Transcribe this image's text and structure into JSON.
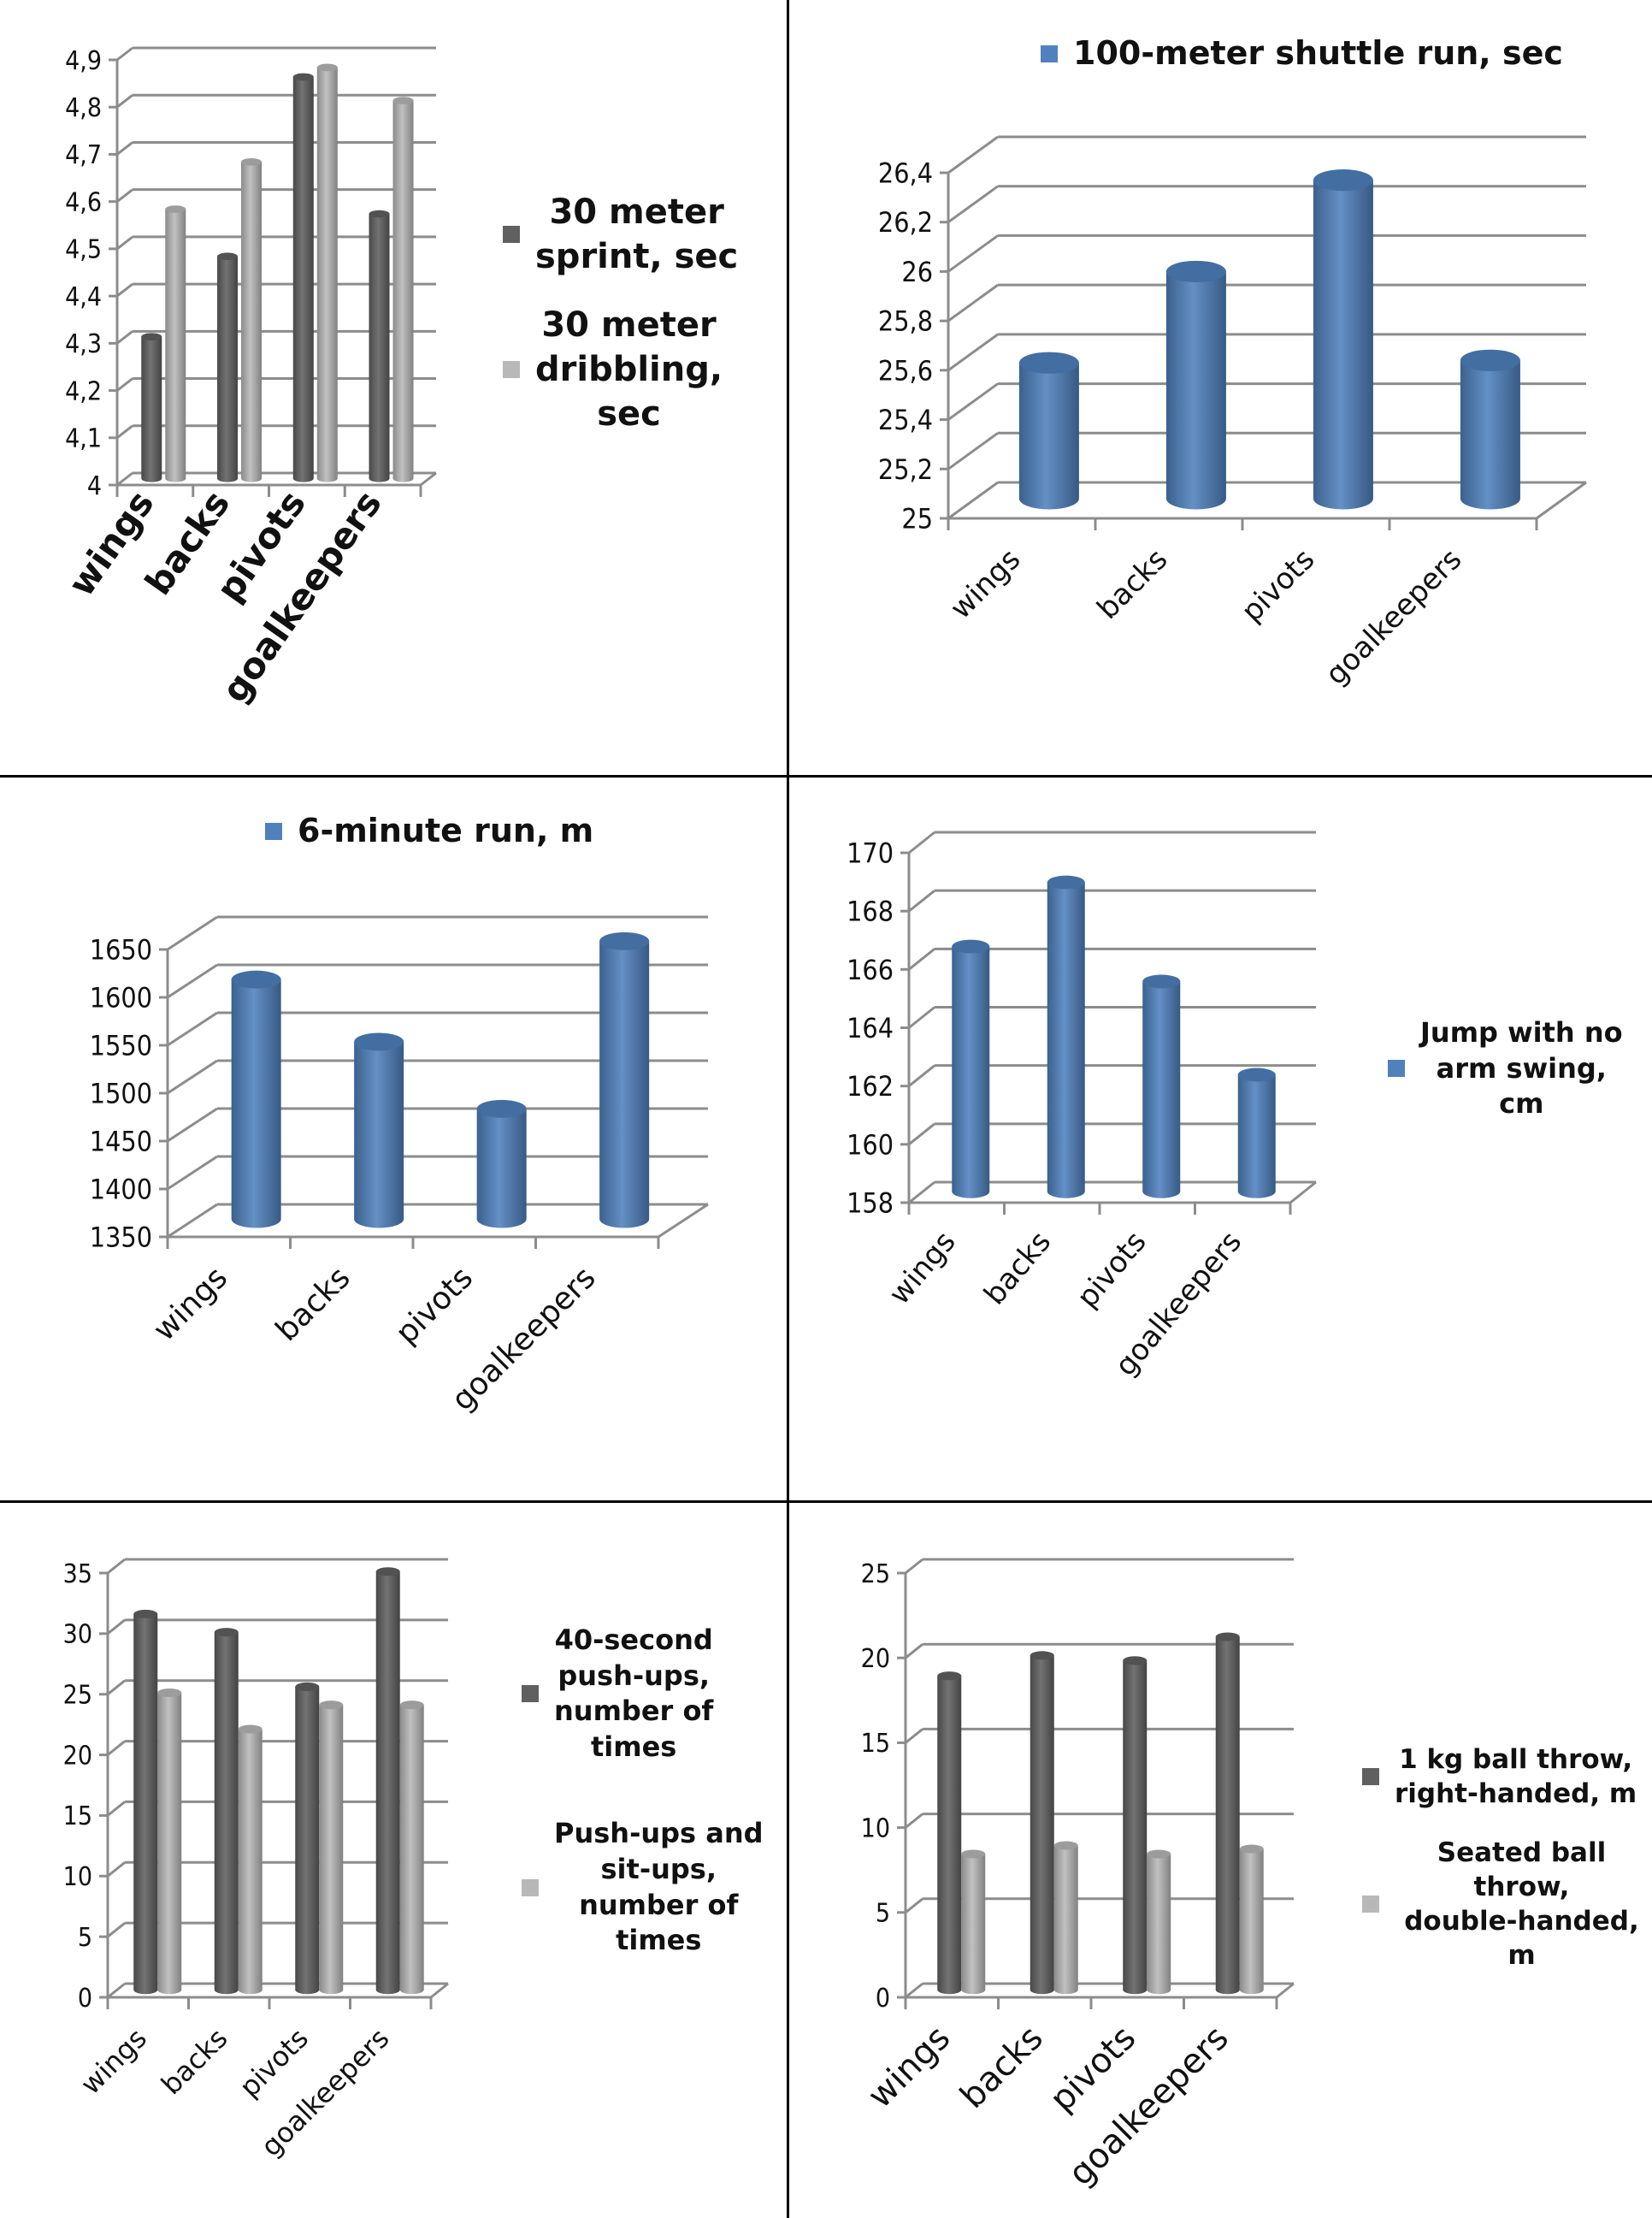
{
  "chart_data": [
    {
      "id": "sprint-dribbling",
      "type": "bar",
      "style": "3d-cylinder-clustered",
      "title": "",
      "categories": [
        "wings",
        "backs",
        "pivots",
        "goalkeepers"
      ],
      "series": [
        {
          "name": "30 meter sprint, sec",
          "color": "#606060",
          "values": [
            4.3,
            4.47,
            4.85,
            4.56
          ]
        },
        {
          "name": "30 meter dribbling, sec",
          "color": "#b8b8b8",
          "values": [
            4.57,
            4.67,
            4.87,
            4.8
          ]
        }
      ],
      "yticks": [
        "4",
        "4,1",
        "4,2",
        "4,3",
        "4,4",
        "4,5",
        "4,6",
        "4,7",
        "4,8",
        "4,9"
      ],
      "ylim": [
        4,
        4.9
      ],
      "xlabel": "",
      "ylabel": "",
      "grid": true,
      "legend": "right"
    },
    {
      "id": "shuttle-run",
      "type": "bar",
      "style": "3d-cylinder",
      "title": "",
      "categories": [
        "wings",
        "backs",
        "pivots",
        "goalkeepers"
      ],
      "series": [
        {
          "name": "100-meter shuttle run, sec",
          "color": "#4f81bd",
          "values": [
            25.55,
            25.92,
            26.29,
            25.56
          ]
        }
      ],
      "yticks": [
        "25",
        "25,2",
        "25,4",
        "25,6",
        "25,8",
        "26",
        "26,2",
        "26,4"
      ],
      "ylim": [
        25,
        26.4
      ],
      "xlabel": "",
      "ylabel": "",
      "grid": true,
      "legend": "top"
    },
    {
      "id": "six-minute-run",
      "type": "bar",
      "style": "3d-cylinder",
      "title": "",
      "categories": [
        "wings",
        "backs",
        "pivots",
        "goalkeepers"
      ],
      "series": [
        {
          "name": "6-minute run, m",
          "color": "#4f81bd",
          "values": [
            1600,
            1535,
            1465,
            1640
          ]
        }
      ],
      "yticks": [
        "1350",
        "1400",
        "1450",
        "1500",
        "1550",
        "1600",
        "1650"
      ],
      "ylim": [
        1350,
        1650
      ],
      "xlabel": "",
      "ylabel": "",
      "grid": true,
      "legend": "top"
    },
    {
      "id": "jump",
      "type": "bar",
      "style": "3d-cylinder",
      "title": "",
      "categories": [
        "wings",
        "backs",
        "pivots",
        "goalkeepers"
      ],
      "series": [
        {
          "name": "Jump with no arm swing, cm",
          "color": "#4f81bd",
          "values": [
            166.4,
            168.6,
            165.2,
            162.0
          ]
        }
      ],
      "yticks": [
        "158",
        "160",
        "162",
        "164",
        "166",
        "168",
        "170"
      ],
      "ylim": [
        158,
        170
      ],
      "xlabel": "",
      "ylabel": "",
      "grid": true,
      "legend": "right"
    },
    {
      "id": "push-ups",
      "type": "bar",
      "style": "3d-cylinder-clustered",
      "title": "",
      "categories": [
        "wings",
        "backs",
        "pivots",
        "goalkeepers"
      ],
      "series": [
        {
          "name": "40-second push-ups, number of times",
          "color": "#606060",
          "values": [
            31,
            29.5,
            25,
            34.5
          ]
        },
        {
          "name": "Push-ups and sit-ups, number of times",
          "color": "#b8b8b8",
          "values": [
            24.5,
            21.5,
            23.5,
            23.5
          ]
        }
      ],
      "yticks": [
        "0",
        "5",
        "10",
        "15",
        "20",
        "25",
        "30",
        "35"
      ],
      "ylim": [
        0,
        35
      ],
      "xlabel": "",
      "ylabel": "",
      "grid": true,
      "legend": "right"
    },
    {
      "id": "ball-throw",
      "type": "bar",
      "style": "3d-cylinder-clustered",
      "title": "",
      "categories": [
        "wings",
        "backs",
        "pivots",
        "goalkeepers"
      ],
      "series": [
        {
          "name": "1 kg ball throw, right-handed, m",
          "color": "#606060",
          "values": [
            18.5,
            19.7,
            19.4,
            20.8
          ]
        },
        {
          "name": "Seated ball throw, double-handed, m",
          "color": "#b8b8b8",
          "values": [
            8.0,
            8.5,
            8.0,
            8.3
          ]
        }
      ],
      "yticks": [
        "0",
        "5",
        "10",
        "15",
        "20",
        "25"
      ],
      "ylim": [
        0,
        25
      ],
      "xlabel": "",
      "ylabel": "",
      "grid": true,
      "legend": "right"
    }
  ],
  "legends": [
    {
      "items": [
        {
          "lines": [
            "30 meter",
            "sprint, sec"
          ]
        },
        {
          "lines": [
            "30 meter",
            "dribbling,",
            "sec"
          ]
        }
      ]
    },
    {
      "items": [
        {
          "lines": [
            "100-meter shuttle run, sec"
          ]
        }
      ]
    },
    {
      "items": [
        {
          "lines": [
            "6-minute run, m"
          ]
        }
      ]
    },
    {
      "items": [
        {
          "lines": [
            "Jump with no",
            "arm swing,",
            "cm"
          ]
        }
      ]
    },
    {
      "items": [
        {
          "lines": [
            "40-second",
            "push-ups,",
            "number of",
            "times"
          ]
        },
        {
          "lines": [
            "Push-ups and",
            "sit-ups,",
            "number of",
            "times"
          ]
        }
      ]
    },
    {
      "items": [
        {
          "lines": [
            "1 kg ball throw,",
            "right-handed, m"
          ]
        },
        {
          "lines": [
            "Seated ball throw,",
            "double-handed,",
            "m"
          ]
        }
      ]
    }
  ]
}
